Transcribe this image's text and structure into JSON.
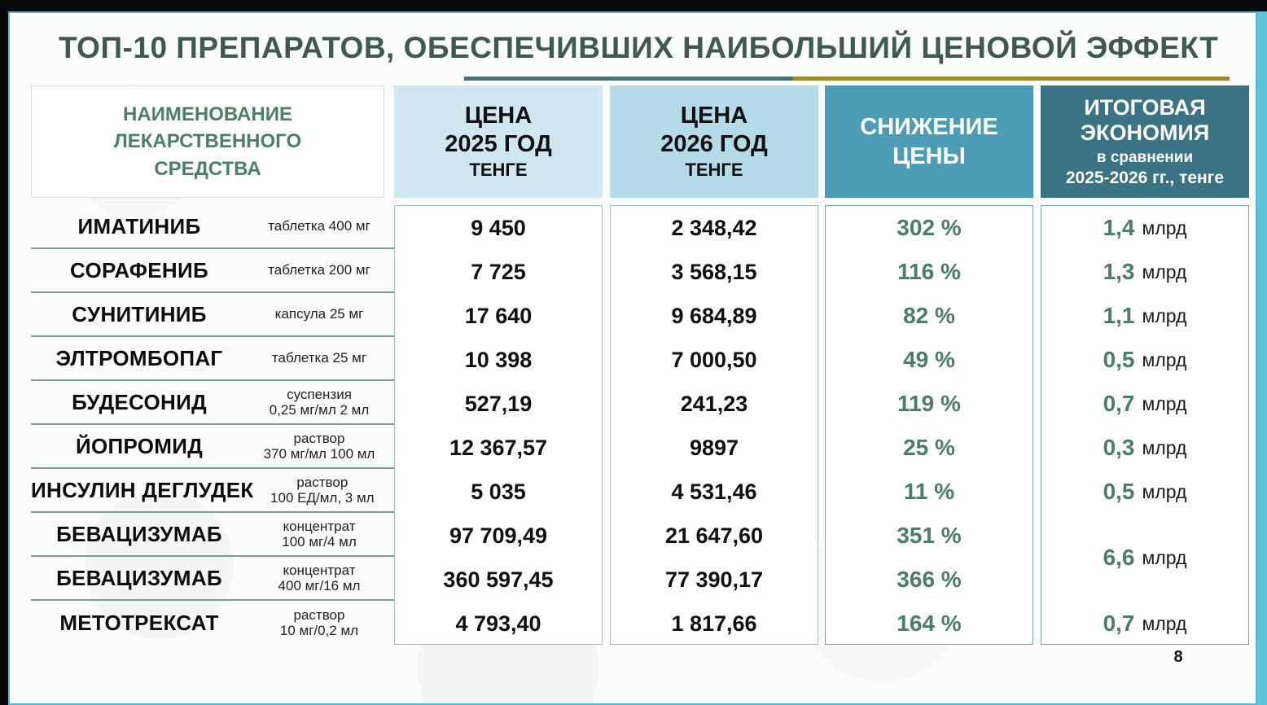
{
  "slide": {
    "title": "ТОП-10 ПРЕПАРАТОВ, ОБЕСПЕЧИВШИХ НАИБОЛЬШИЙ ЦЕНОВОЙ ЭФФЕКТ",
    "page_number": "8"
  },
  "table": {
    "headers": {
      "name": {
        "line1": "НАИМЕНОВАНИЕ",
        "line2": "ЛЕКАРСТВЕННОГО",
        "line3": "СРЕДСТВА"
      },
      "price2025": {
        "line1": "ЦЕНА",
        "line2": "2025 ГОД",
        "line3": "ТЕНГЕ"
      },
      "price2026": {
        "line1": "ЦЕНА",
        "line2": "2026 ГОД",
        "line3": "ТЕНГЕ"
      },
      "reduction": {
        "line1": "СНИЖЕНИЕ",
        "line2": "ЦЕНЫ"
      },
      "savings": {
        "line1": "ИТОГОВАЯ",
        "line2": "ЭКОНОМИЯ",
        "line3": "в сравнении",
        "line4": "2025-2026 гг., тенге"
      }
    },
    "rows": [
      {
        "name": "ИМАТИНИБ",
        "form1": "таблетка 400 мг",
        "form2": "",
        "price2025": "9 450",
        "price2026": "2 348,42",
        "reduction": "302 %",
        "saving": "1,4",
        "saving_unit": "млрд"
      },
      {
        "name": "СОРАФЕНИБ",
        "form1": "таблетка 200 мг",
        "form2": "",
        "price2025": "7 725",
        "price2026": "3 568,15",
        "reduction": "116 %",
        "saving": "1,3",
        "saving_unit": "млрд"
      },
      {
        "name": "СУНИТИНИБ",
        "form1": "капсула 25 мг",
        "form2": "",
        "price2025": "17 640",
        "price2026": "9 684,89",
        "reduction": "82 %",
        "saving": "1,1",
        "saving_unit": "млрд"
      },
      {
        "name": "ЭЛТРОМБОПАГ",
        "form1": "таблетка 25 мг",
        "form2": "",
        "price2025": "10 398",
        "price2026": "7 000,50",
        "reduction": "49 %",
        "saving": "0,5",
        "saving_unit": "млрд"
      },
      {
        "name": "БУДЕСОНИД",
        "form1": "суспензия",
        "form2": "0,25 мг/мл 2 мл",
        "price2025": "527,19",
        "price2026": "241,23",
        "reduction": "119 %",
        "saving": "0,7",
        "saving_unit": "млрд"
      },
      {
        "name": "ЙОПРОМИД",
        "form1": "раствор",
        "form2": "370 мг/мл 100 мл",
        "price2025": "12 367,57",
        "price2026": "9897",
        "reduction": "25 %",
        "saving": "0,3",
        "saving_unit": "млрд"
      },
      {
        "name": "ИНСУЛИН ДЕГЛУДЕК",
        "form1": "раствор",
        "form2": "100 ЕД/мл, 3 мл",
        "price2025": "5 035",
        "price2026": "4 531,46",
        "reduction": "11 %",
        "saving": "0,5",
        "saving_unit": "млрд"
      },
      {
        "name": "БЕВАЦИЗУМАБ",
        "form1": "концентрат",
        "form2": "100 мг/4 мл",
        "price2025": "97 709,49",
        "price2026": "21 647,60",
        "reduction": "351 %"
      },
      {
        "name": "БЕВАЦИЗУМАБ",
        "form1": "концентрат",
        "form2": "400 мг/16 мл",
        "price2025": "360 597,45",
        "price2026": "77 390,17",
        "reduction": "366 %"
      },
      {
        "name": "МЕТОТРЕКСАТ",
        "form1": "раствор",
        "form2": "10 мг/0,2 мл",
        "price2025": "4 793,40",
        "price2026": "1 817,66",
        "reduction": "164 %",
        "saving": "0,7",
        "saving_unit": "млрд"
      }
    ],
    "merged_saving": {
      "value": "6,6",
      "unit": "млрд"
    }
  },
  "colors": {
    "title_green": "#3e5a4e",
    "header_name_text": "#4d7f68",
    "header_2025_bg": "#cfe7f0",
    "header_2026_bg": "#b5dbe8",
    "header_reduction_bg": "#4d9cb5",
    "header_savings_bg": "#3a7383",
    "accent_green": "#4c7c6a",
    "underline_teal": "#4e7270",
    "underline_gold": "#a3892c",
    "frame_blue": "#5fc3dc"
  }
}
